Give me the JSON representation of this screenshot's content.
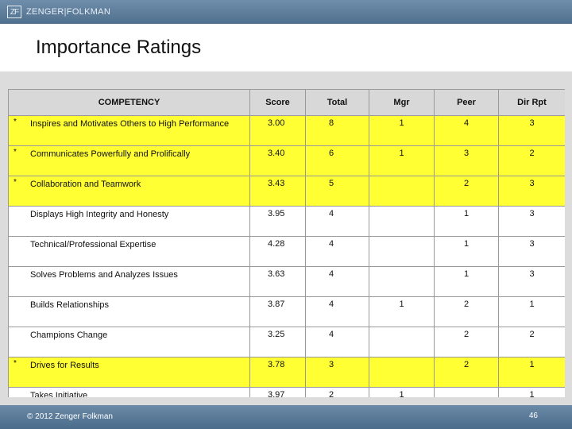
{
  "header": {
    "logo_mark": "ZF",
    "brand": "ZENGER|FOLKMAN"
  },
  "slide": {
    "title": "Importance Ratings"
  },
  "table": {
    "columns": [
      "COMPETENCY",
      "Score",
      "Total",
      "Mgr",
      "Peer",
      "Dir Rpt"
    ],
    "rows": [
      {
        "star": "*",
        "competency": "Inspires and Motivates Others to High Performance",
        "score": "3.00",
        "total": "8",
        "mgr": "1",
        "peer": "4",
        "dir": "3",
        "highlight": true
      },
      {
        "star": "*",
        "competency": "Communicates Powerfully and Prolifically",
        "score": "3.40",
        "total": "6",
        "mgr": "1",
        "peer": "3",
        "dir": "2",
        "highlight": true
      },
      {
        "star": "*",
        "competency": "Collaboration and Teamwork",
        "score": "3.43",
        "total": "5",
        "mgr": "",
        "peer": "2",
        "dir": "3",
        "highlight": true
      },
      {
        "star": "",
        "competency": "Displays High Integrity and Honesty",
        "score": "3.95",
        "total": "4",
        "mgr": "",
        "peer": "1",
        "dir": "3",
        "highlight": false
      },
      {
        "star": "",
        "competency": "Technical/Professional Expertise",
        "score": "4.28",
        "total": "4",
        "mgr": "",
        "peer": "1",
        "dir": "3",
        "highlight": false
      },
      {
        "star": "",
        "competency": "Solves Problems and Analyzes Issues",
        "score": "3.63",
        "total": "4",
        "mgr": "",
        "peer": "1",
        "dir": "3",
        "highlight": false
      },
      {
        "star": "",
        "competency": "Builds Relationships",
        "score": "3.87",
        "total": "4",
        "mgr": "1",
        "peer": "2",
        "dir": "1",
        "highlight": false
      },
      {
        "star": "",
        "competency": "Champions Change",
        "score": "3.25",
        "total": "4",
        "mgr": "",
        "peer": "2",
        "dir": "2",
        "highlight": false
      },
      {
        "star": "*",
        "competency": "Drives for Results",
        "score": "3.78",
        "total": "3",
        "mgr": "",
        "peer": "2",
        "dir": "1",
        "highlight": true
      },
      {
        "star": "",
        "competency": "Takes Initiative",
        "score": "3.97",
        "total": "2",
        "mgr": "1",
        "peer": "",
        "dir": "1",
        "highlight": false
      }
    ]
  },
  "colors": {
    "highlight": "#ffff33",
    "header_bg": "#d8d8d8",
    "bar": "#5b7b99"
  },
  "footer": {
    "copyright": "© 2012 Zenger Folkman",
    "page_number": "46"
  }
}
